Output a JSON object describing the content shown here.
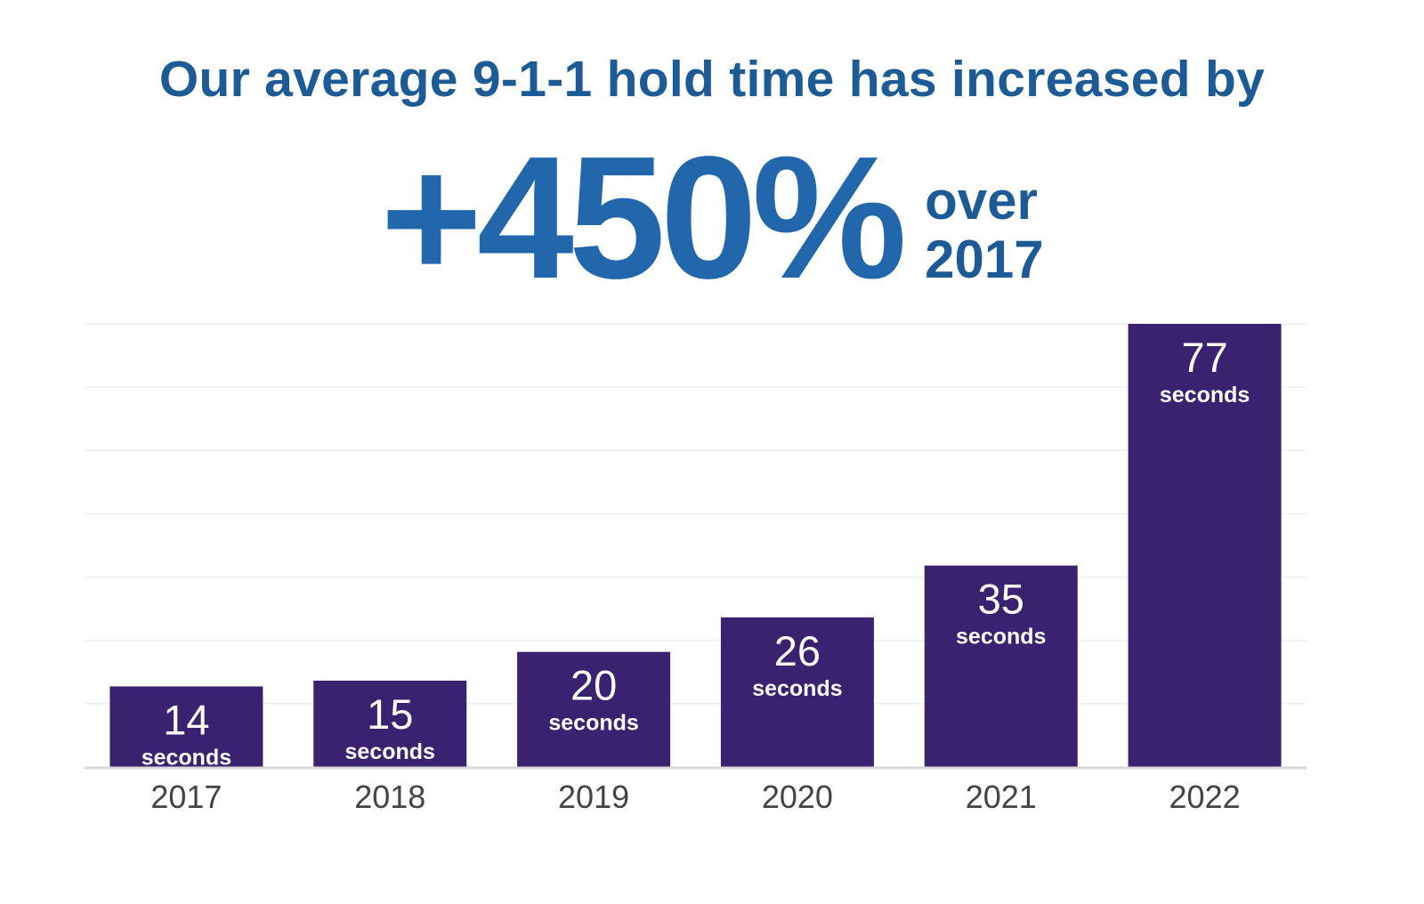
{
  "header": {
    "headline": "Our average 9-1-1 hold time has increased by",
    "stat": "+450%",
    "stat_suffix_line1": "over",
    "stat_suffix_line2": "2017"
  },
  "colors": {
    "headline": "#1d5b96",
    "stat": "#2266ac",
    "bar": "#3b2270",
    "grid": "#eeeeee",
    "axis": "#d6d6d6",
    "tick": "#444444",
    "label": "#ffffff"
  },
  "chart_data": {
    "type": "bar",
    "title": "",
    "xlabel": "",
    "ylabel": "",
    "categories": [
      "2017",
      "2018",
      "2019",
      "2020",
      "2021",
      "2022"
    ],
    "values": [
      14,
      15,
      20,
      26,
      35,
      77
    ],
    "value_unit": "seconds",
    "ylim": [
      0,
      77
    ],
    "grid": true,
    "legend": "none"
  }
}
